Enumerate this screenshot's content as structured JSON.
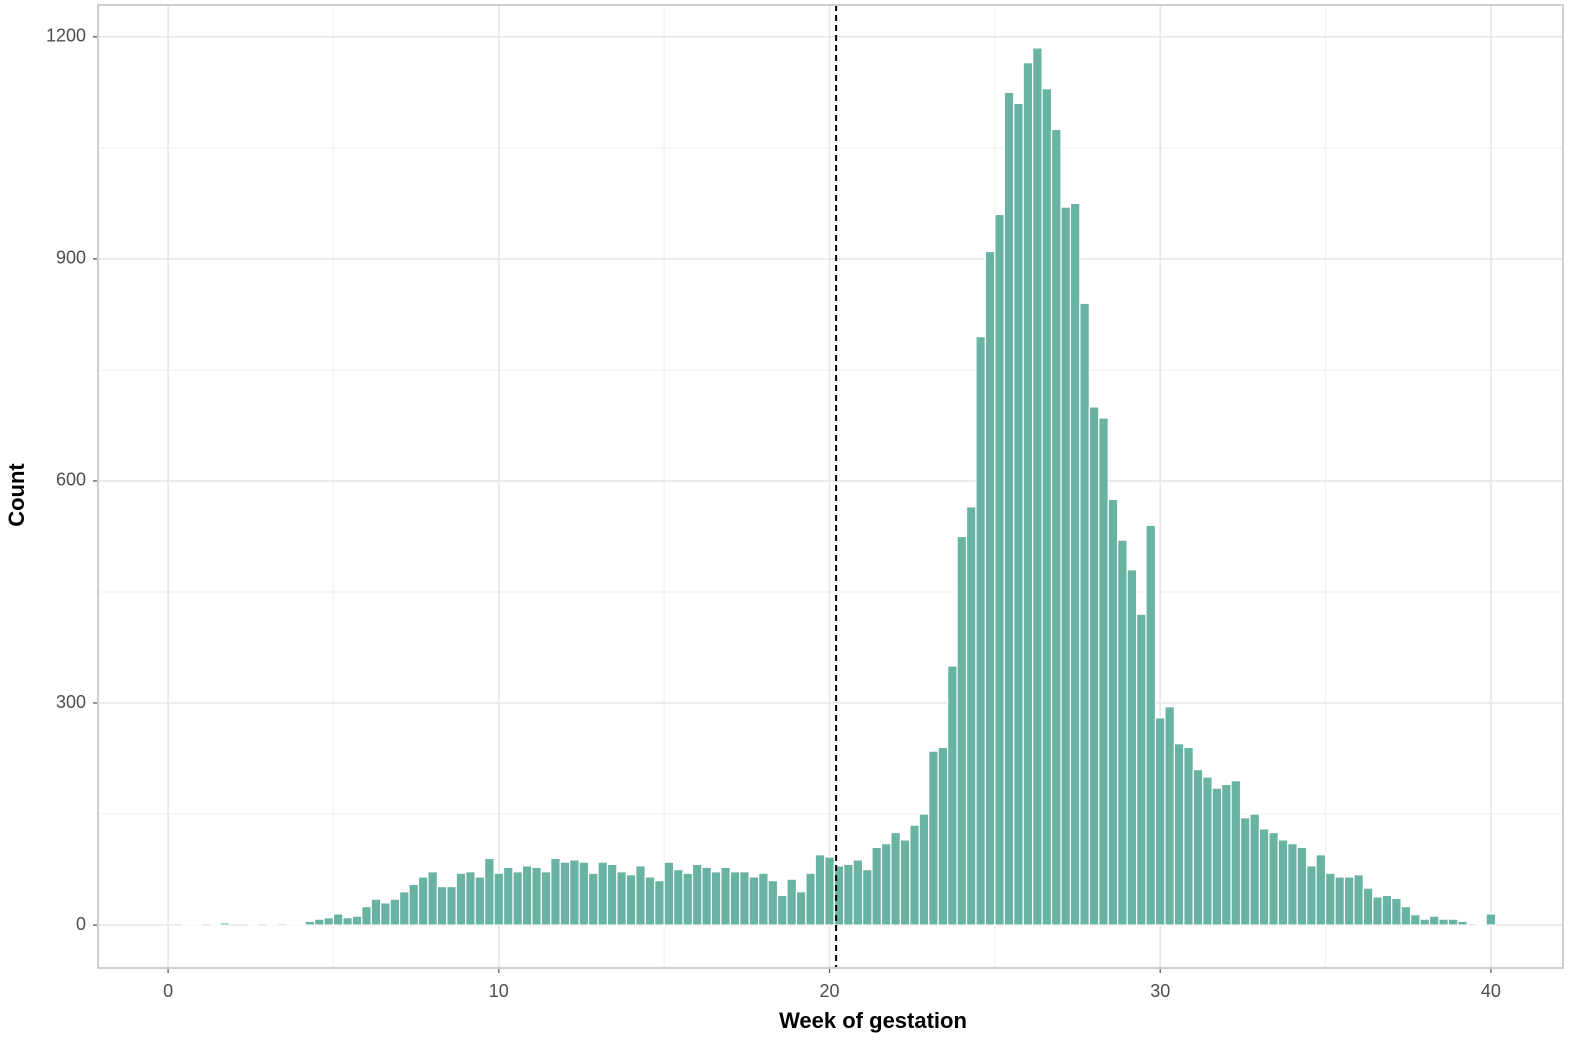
{
  "chart_data": {
    "type": "histogram",
    "x_label": "Week of gestation",
    "y_label": "Count",
    "color": "#69b3a2",
    "grid": true,
    "vline": 20.2,
    "xlim": [
      -2.12,
      42.18
    ],
    "ylim": [
      -58,
      1243
    ],
    "xticks": [
      0,
      10,
      20,
      30,
      40
    ],
    "yticks": [
      0,
      300,
      600,
      900,
      1200
    ],
    "bins": [
      -0.143,
      0.143,
      0.429,
      0.714,
      1,
      1.286,
      1.571,
      1.857,
      2.143,
      2.429,
      2.714,
      3,
      3.286,
      3.571,
      3.857,
      4.143,
      4.429,
      4.714,
      5,
      5.286,
      5.571,
      5.857,
      6.143,
      6.429,
      6.714,
      7,
      7.286,
      7.571,
      7.857,
      8.143,
      8.429,
      8.714,
      9,
      9.286,
      9.571,
      9.857,
      10.143,
      10.429,
      10.714,
      11,
      11.286,
      11.571,
      11.857,
      12.143,
      12.429,
      12.714,
      13,
      13.286,
      13.571,
      13.857,
      14.143,
      14.429,
      14.714,
      15,
      15.286,
      15.571,
      15.857,
      16.143,
      16.429,
      16.714,
      17,
      17.286,
      17.571,
      17.857,
      18.143,
      18.429,
      18.714,
      19,
      19.286,
      19.571,
      19.857,
      20.143,
      20.429,
      20.714,
      21,
      21.286,
      21.571,
      21.857,
      22.143,
      22.429,
      22.714,
      23,
      23.286,
      23.571,
      23.857,
      24.143,
      24.429,
      24.714,
      25,
      25.286,
      25.571,
      25.857,
      26.143,
      26.429,
      26.714,
      27,
      27.286,
      27.571,
      27.857,
      28.143,
      28.429,
      28.714,
      29,
      29.286,
      29.571,
      29.857,
      30.143,
      30.429,
      30.714,
      31,
      31.286,
      31.571,
      31.857,
      32.143,
      32.429,
      32.714,
      33,
      33.286,
      33.571,
      33.857,
      34.143,
      34.429,
      34.714,
      35,
      35.286,
      35.571,
      35.857,
      36.143,
      36.429,
      36.714,
      37,
      37.286,
      37.571,
      37.857,
      38.143,
      38.429,
      38.714,
      39,
      39.286,
      39.571,
      39.857,
      40.143
    ],
    "values": [
      2,
      0,
      1,
      1,
      0,
      1,
      3,
      0,
      0,
      1,
      0,
      1,
      2,
      1,
      1,
      5,
      8,
      10,
      15,
      10,
      12,
      25,
      35,
      30,
      35,
      45,
      55,
      65,
      72,
      52,
      52,
      70,
      72,
      65,
      90,
      70,
      78,
      72,
      80,
      78,
      72,
      90,
      85,
      88,
      85,
      70,
      85,
      82,
      72,
      68,
      80,
      65,
      60,
      85,
      75,
      70,
      82,
      78,
      72,
      78,
      72,
      72,
      65,
      70,
      60,
      40,
      62,
      45,
      70,
      95,
      92,
      80,
      82,
      88,
      75,
      105,
      110,
      125,
      115,
      135,
      150,
      235,
      240,
      350,
      525,
      565,
      795,
      910,
      960,
      1125,
      1110,
      1165,
      1185,
      1130,
      1075,
      970,
      975,
      840,
      700,
      685,
      575,
      520,
      480,
      420,
      540,
      280,
      295,
      245,
      240,
      210,
      200,
      185,
      190,
      195,
      145,
      150,
      130,
      125,
      115,
      110,
      105,
      80,
      95,
      70,
      65,
      65,
      68,
      50,
      38,
      40,
      36,
      25,
      14,
      8,
      12,
      8,
      8,
      5,
      2,
      1,
      15
    ]
  }
}
